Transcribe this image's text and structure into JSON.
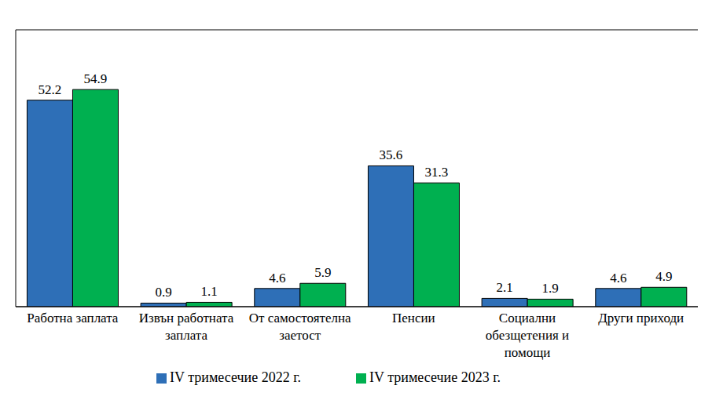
{
  "chart_data": {
    "type": "bar",
    "categories": [
      "Работна заплата",
      "Извън работната заплата",
      "От самостоятелна заетост",
      "Пенсии",
      "Социални обезщетения и помощи",
      "Други приходи"
    ],
    "series": [
      {
        "name": "IV тримесечие 2022 г.",
        "color": "#2e6fb7",
        "values": [
          52.2,
          0.9,
          4.6,
          35.6,
          2.1,
          4.6
        ]
      },
      {
        "name": "IV тримесечие 2023 г.",
        "color": "#00b050",
        "values": [
          54.9,
          1.1,
          5.9,
          31.3,
          1.9,
          4.9
        ]
      }
    ],
    "ylim": [
      0,
      70
    ],
    "yticks": [
      0,
      10,
      20,
      30,
      40,
      50,
      60,
      70
    ],
    "grid": true,
    "data_labels": true,
    "tick_labels": "x",
    "legend": "bottom"
  }
}
